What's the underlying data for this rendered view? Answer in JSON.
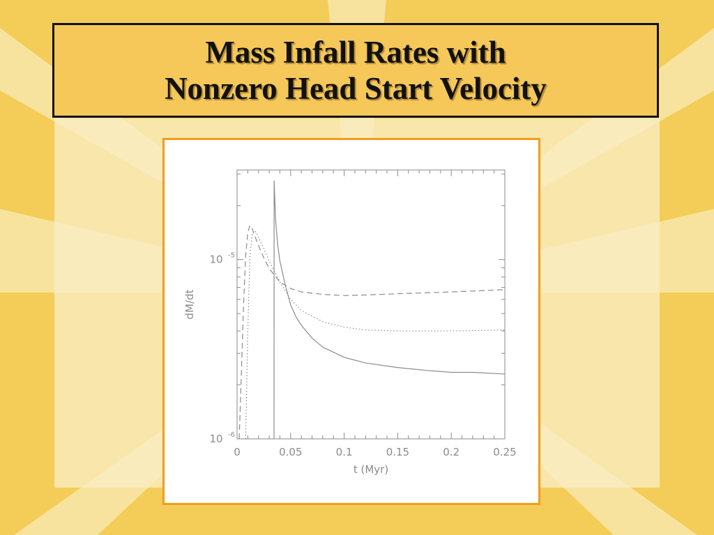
{
  "slide": {
    "title_line1": "Mass Infall Rates with",
    "title_line2": "Nonzero Head Start Velocity",
    "colors": {
      "background": "#f3cd57",
      "title_box": "#f6c85a",
      "title_border": "#111111",
      "chart_border": "#f59b1a",
      "plot_ink": "#8a8a8a"
    }
  },
  "chart_data": {
    "type": "line",
    "xlabel": "t (Myr)",
    "ylabel": "dM/dt",
    "xlim": [
      0,
      0.25
    ],
    "ylim_log10": [
      -6,
      -4.5
    ],
    "y_scale": "log",
    "grid": false,
    "x_ticks": [
      {
        "value": 0,
        "label": "0"
      },
      {
        "value": 0.05,
        "label": "0.05"
      },
      {
        "value": 0.1,
        "label": "0.1"
      },
      {
        "value": 0.15,
        "label": "0.15"
      },
      {
        "value": 0.2,
        "label": "0.2"
      },
      {
        "value": 0.25,
        "label": "0.25"
      }
    ],
    "y_ticks": [
      {
        "value": 1e-06,
        "base": "10",
        "exp": "-6"
      },
      {
        "value": 1e-05,
        "base": "10",
        "exp": "-5"
      }
    ],
    "series": [
      {
        "style": "solid",
        "x": [
          0.0345,
          0.0346,
          0.0352,
          0.036,
          0.038,
          0.04,
          0.045,
          0.05,
          0.055,
          0.06,
          0.07,
          0.08,
          0.1,
          0.12,
          0.15,
          0.18,
          0.2,
          0.22,
          0.25
        ],
        "y": [
          1e-06,
          2.75e-05,
          2.2e-05,
          1.65e-05,
          1.2e-05,
          9.8e-06,
          7.2e-06,
          5.6e-06,
          4.8e-06,
          4.3e-06,
          3.65e-06,
          3.25e-06,
          2.85e-06,
          2.65e-06,
          2.5e-06,
          2.4e-06,
          2.35e-06,
          2.35e-06,
          2.3e-06
        ]
      },
      {
        "style": "dashed",
        "x": [
          0.002,
          0.004,
          0.006,
          0.008,
          0.01,
          0.012,
          0.014,
          0.016,
          0.02,
          0.025,
          0.03,
          0.04,
          0.05,
          0.06,
          0.08,
          0.1,
          0.12,
          0.15,
          0.2,
          0.25
        ],
        "y": [
          1e-06,
          2.3e-06,
          5.5e-06,
          1.05e-05,
          1.42e-05,
          1.55e-05,
          1.5e-05,
          1.38e-05,
          1.2e-05,
          1.02e-05,
          8.9e-06,
          7.5e-06,
          6.9e-06,
          6.6e-06,
          6.4e-06,
          6.3e-06,
          6.35e-06,
          6.45e-06,
          6.6e-06,
          6.8e-06
        ]
      },
      {
        "style": "dotted",
        "x": [
          0.008,
          0.01,
          0.012,
          0.014,
          0.016,
          0.018,
          0.02,
          0.025,
          0.03,
          0.04,
          0.05,
          0.06,
          0.08,
          0.1,
          0.12,
          0.15,
          0.2,
          0.25
        ],
        "y": [
          1e-06,
          4e-06,
          1.05e-05,
          1.38e-05,
          1.45e-05,
          1.42e-05,
          1.33e-05,
          1.15e-05,
          9.8e-06,
          7.5e-06,
          6e-06,
          5.2e-06,
          4.5e-06,
          4.2e-06,
          4.05e-06,
          4e-06,
          4e-06,
          4.05e-06
        ]
      }
    ]
  }
}
